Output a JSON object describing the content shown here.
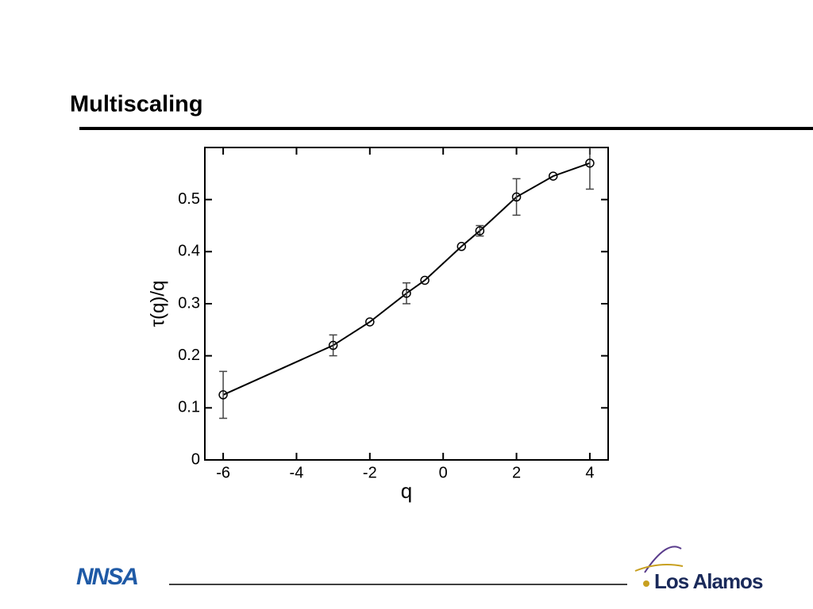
{
  "slide_title": "Multiscaling",
  "footer": {
    "left_logo": "NNSA",
    "right_logo": "Los Alamos"
  },
  "chart_data": {
    "type": "line",
    "x_label": "q",
    "y_label": "τ(q)/q",
    "x": [
      -6,
      -3,
      -2,
      -1,
      -0.5,
      0.5,
      1,
      2,
      3,
      4
    ],
    "values": [
      0.125,
      0.22,
      0.265,
      0.32,
      0.345,
      0.41,
      0.44,
      0.505,
      0.545,
      0.57
    ],
    "errors": [
      0.045,
      0.02,
      null,
      0.02,
      null,
      null,
      0.01,
      0.035,
      null,
      0.05
    ],
    "color": "#000000",
    "xlim": [
      -6.5,
      4.5
    ],
    "xticks": [
      -6,
      -4,
      -2,
      0,
      2,
      4
    ],
    "ylim": [
      0,
      0.6
    ],
    "yticks": [
      0,
      0.1,
      0.2,
      0.3,
      0.4,
      0.5
    ]
  }
}
